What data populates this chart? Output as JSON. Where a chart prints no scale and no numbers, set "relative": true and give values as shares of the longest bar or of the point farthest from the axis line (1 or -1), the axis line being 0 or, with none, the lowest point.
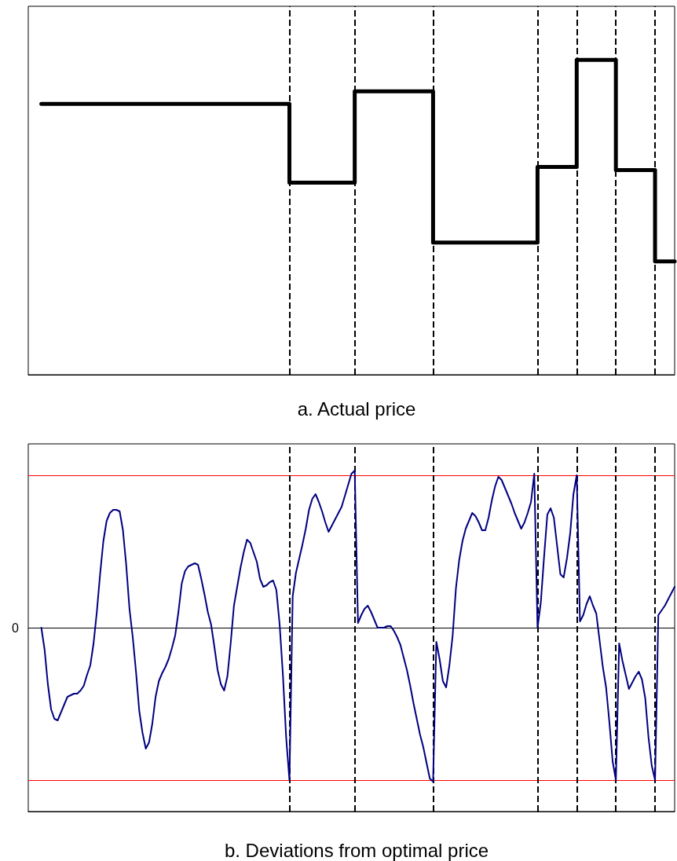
{
  "chart_data": [
    {
      "type": "step",
      "title": "a. Actual price",
      "relative": true,
      "categories": [
        null,
        null,
        null,
        null,
        null,
        null,
        null,
        null,
        null,
        null,
        null,
        null,
        null,
        null,
        null,
        null,
        null,
        null,
        null,
        null,
        null,
        null,
        null,
        null,
        null,
        null,
        null,
        null,
        null,
        null,
        null,
        null,
        null,
        null,
        null,
        null,
        null,
        null,
        null,
        null,
        null,
        null,
        null,
        null,
        null,
        null,
        null,
        null,
        null,
        null,
        null,
        null,
        null,
        null,
        null,
        null,
        null,
        null,
        null,
        null,
        null,
        null,
        null,
        null,
        null,
        null,
        null,
        null,
        null,
        null,
        null,
        null,
        null,
        null,
        null,
        null,
        null,
        null,
        null,
        null,
        null,
        null,
        null,
        null,
        null,
        null,
        null,
        null,
        null,
        null,
        null,
        null,
        null,
        null,
        null,
        null,
        null,
        null,
        null,
        null,
        null,
        null,
        null,
        null,
        null,
        null,
        null,
        null,
        null,
        null,
        null,
        null,
        null,
        null,
        null,
        null,
        null,
        null,
        null,
        null,
        null,
        null,
        null,
        null,
        null,
        null,
        null,
        null,
        null,
        null,
        null,
        null,
        null,
        null,
        null,
        null,
        null,
        null,
        null,
        null,
        null,
        null,
        null,
        null,
        null,
        null,
        null,
        null,
        null,
        null,
        null,
        null,
        null,
        null,
        null,
        null,
        null,
        null,
        null,
        null,
        null,
        null,
        null,
        null,
        null,
        null,
        null,
        null,
        null,
        null,
        null,
        null,
        null,
        null,
        null,
        null,
        null,
        null,
        null,
        null,
        null,
        null,
        null,
        null,
        null,
        null,
        null,
        null,
        null,
        null,
        null,
        null,
        null,
        null,
        null,
        null,
        null,
        null,
        null
      ],
      "series": [
        {
          "color": "#000000",
          "values": [
            null,
            null,
            null,
            null,
            0.86,
            0.86,
            0.86,
            0.86,
            0.86,
            0.86,
            0.86,
            0.86,
            0.86,
            0.86,
            0.86,
            0.86,
            0.86,
            0.86,
            0.86,
            0.86,
            0.86,
            0.86,
            0.86,
            0.86,
            0.86,
            0.86,
            0.86,
            0.86,
            0.86,
            0.86,
            0.86,
            0.86,
            0.86,
            0.86,
            0.86,
            0.86,
            0.86,
            0.86,
            0.86,
            0.86,
            0.86,
            0.86,
            0.86,
            0.86,
            0.86,
            0.86,
            0.86,
            0.86,
            0.86,
            0.86,
            0.86,
            0.86,
            0.86,
            0.86,
            0.86,
            0.86,
            0.86,
            0.86,
            0.86,
            0.86,
            0.86,
            0.86,
            0.86,
            0.86,
            0.86,
            0.86,
            0.86,
            0.86,
            0.86,
            0.86,
            0.86,
            0.86,
            0.86,
            0.86,
            0.86,
            0.86,
            0.86,
            0.86,
            0.86,
            0.86,
            0.61,
            0.61,
            0.61,
            0.61,
            0.61,
            0.61,
            0.61,
            0.61,
            0.61,
            0.61,
            0.61,
            0.61,
            0.61,
            0.61,
            0.61,
            0.61,
            0.61,
            0.61,
            0.61,
            0.61,
            0.9,
            0.9,
            0.9,
            0.9,
            0.9,
            0.9,
            0.9,
            0.9,
            0.9,
            0.9,
            0.9,
            0.9,
            0.9,
            0.9,
            0.9,
            0.9,
            0.9,
            0.9,
            0.9,
            0.9,
            0.9,
            0.9,
            0.9,
            0.9,
            0.42,
            0.42,
            0.42,
            0.42,
            0.42,
            0.42,
            0.42,
            0.42,
            0.42,
            0.42,
            0.42,
            0.42,
            0.42,
            0.42,
            0.42,
            0.42,
            0.42,
            0.42,
            0.42,
            0.42,
            0.42,
            0.42,
            0.42,
            0.42,
            0.42,
            0.42,
            0.42,
            0.42,
            0.42,
            0.42,
            0.42,
            0.42,
            0.66,
            0.66,
            0.66,
            0.66,
            0.66,
            0.66,
            0.66,
            0.66,
            0.66,
            0.66,
            0.66,
            0.66,
            1.0,
            1.0,
            1.0,
            1.0,
            1.0,
            1.0,
            1.0,
            1.0,
            1.0,
            1.0,
            1.0,
            1.0,
            0.65,
            0.65,
            0.65,
            0.65,
            0.65,
            0.65,
            0.65,
            0.65,
            0.65,
            0.65,
            0.65,
            0.65,
            0.36,
            0.36,
            0.36,
            0.36,
            0.36,
            0.36,
            0.36
          ]
        }
      ]
    },
    {
      "type": "line",
      "title": "b. Deviations from optimal price",
      "relative": true,
      "categories": [
        null,
        null,
        null,
        null,
        null,
        null,
        null,
        null,
        null,
        null,
        null,
        null,
        null,
        null,
        null,
        null,
        null,
        null,
        null,
        null,
        null,
        null,
        null,
        null,
        null,
        null,
        null,
        null,
        null,
        null,
        null,
        null,
        null,
        null,
        null,
        null,
        null,
        null,
        null,
        null,
        null,
        null,
        null,
        null,
        null,
        null,
        null,
        null,
        null,
        null,
        null,
        null,
        null,
        null,
        null,
        null,
        null,
        null,
        null,
        null,
        null,
        null,
        null,
        null,
        null,
        null,
        null,
        null,
        null,
        null,
        null,
        null,
        null,
        null,
        null,
        null,
        null,
        null,
        null,
        null,
        null,
        null,
        null,
        null,
        null,
        null,
        null,
        null,
        null,
        null,
        null,
        null,
        null,
        null,
        null,
        null,
        null,
        null,
        null,
        null,
        null,
        null,
        null,
        null,
        null,
        null,
        null,
        null,
        null,
        null,
        null,
        null,
        null,
        null,
        null,
        null,
        null,
        null,
        null,
        null,
        null,
        null,
        null,
        null,
        null,
        null,
        null,
        null,
        null,
        null,
        null,
        null,
        null,
        null,
        null,
        null,
        null,
        null,
        null,
        null,
        null,
        null,
        null,
        null,
        null,
        null,
        null,
        null,
        null,
        null,
        null,
        null,
        null,
        null,
        null,
        null,
        null,
        null,
        null,
        null,
        null,
        null,
        null,
        null,
        null,
        null,
        null,
        null,
        null,
        null,
        null,
        null,
        null,
        null,
        null,
        null,
        null,
        null,
        null,
        null,
        null,
        null,
        null,
        null,
        null,
        null,
        null,
        null,
        null,
        null,
        null,
        null,
        null,
        null,
        null,
        null,
        null,
        null,
        null
      ],
      "series": [
        {
          "color": "#000080",
          "values": [
            null,
            null,
            null,
            null,
            0.0,
            -0.14,
            -0.36,
            -0.52,
            -0.58,
            -0.59,
            -0.54,
            -0.49,
            -0.44,
            -0.43,
            -0.42,
            -0.42,
            -0.4,
            -0.37,
            -0.3,
            -0.24,
            -0.1,
            0.1,
            0.34,
            0.55,
            0.68,
            0.73,
            0.75,
            0.75,
            0.74,
            0.62,
            0.4,
            0.12,
            -0.06,
            -0.28,
            -0.53,
            -0.67,
            -0.77,
            -0.73,
            -0.61,
            -0.44,
            -0.34,
            -0.29,
            -0.25,
            -0.2,
            -0.13,
            -0.05,
            0.1,
            0.28,
            0.36,
            0.39,
            0.4,
            0.41,
            0.4,
            0.31,
            0.21,
            0.1,
            0.02,
            -0.12,
            -0.27,
            -0.36,
            -0.4,
            -0.31,
            -0.1,
            0.14,
            0.26,
            0.38,
            0.48,
            0.56,
            0.54,
            0.48,
            0.42,
            0.31,
            0.26,
            0.27,
            0.29,
            0.3,
            0.24,
            0.02,
            -0.3,
            -0.7,
            -0.97,
            0.2,
            0.35,
            0.44,
            0.53,
            0.63,
            0.75,
            0.82,
            0.85,
            0.8,
            0.74,
            0.67,
            0.61,
            0.65,
            0.69,
            0.73,
            0.77,
            0.84,
            0.91,
            0.98,
            1.0,
            0.03,
            0.08,
            0.12,
            0.14,
            0.1,
            0.05,
            0.0,
            0.0,
            0.0,
            0.01,
            0.01,
            -0.02,
            -0.06,
            -0.11,
            -0.19,
            -0.27,
            -0.37,
            -0.48,
            -0.58,
            -0.68,
            -0.76,
            -0.86,
            -0.96,
            -0.98,
            -0.09,
            -0.2,
            -0.34,
            -0.38,
            -0.24,
            -0.05,
            0.25,
            0.43,
            0.55,
            0.63,
            0.68,
            0.73,
            0.71,
            0.67,
            0.62,
            0.62,
            0.7,
            0.81,
            0.9,
            0.96,
            0.94,
            0.89,
            0.84,
            0.79,
            0.73,
            0.68,
            0.63,
            0.67,
            0.73,
            0.8,
            0.98,
            0.0,
            0.16,
            0.45,
            0.72,
            0.76,
            0.7,
            0.52,
            0.34,
            0.32,
            0.44,
            0.6,
            0.85,
            0.97,
            0.04,
            0.08,
            0.15,
            0.2,
            0.14,
            0.09,
            -0.08,
            -0.25,
            -0.38,
            -0.6,
            -0.85,
            -0.97,
            -0.1,
            -0.21,
            -0.3,
            -0.39,
            -0.35,
            -0.31,
            -0.28,
            -0.33,
            -0.45,
            -0.7,
            -0.88,
            -0.97,
            0.08,
            0.11,
            0.14,
            0.18,
            0.22,
            0.26
          ]
        }
      ],
      "ref_lines": [
        {
          "axis": "y",
          "value": 0,
          "label": "0",
          "line_style": "solid",
          "color": "#000000"
        },
        {
          "axis": "y",
          "value": 0.97,
          "line_style": "solid",
          "color": "#ff0000"
        },
        {
          "axis": "y",
          "value": -0.97,
          "line_style": "solid",
          "color": "#ff0000"
        }
      ]
    }
  ]
}
